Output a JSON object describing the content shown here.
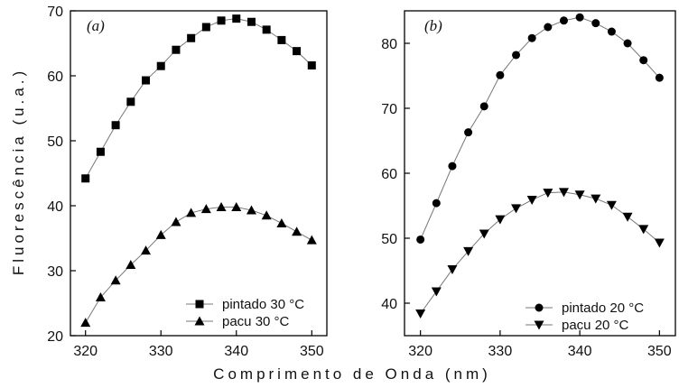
{
  "figure": {
    "xlabel": "Comprimento de Onda (nm)",
    "ylabel": "Fluorescência (u.a.)"
  },
  "chart_data": [
    {
      "type": "line",
      "panel_label": "(a)",
      "x": [
        320,
        322,
        324,
        326,
        328,
        330,
        332,
        334,
        336,
        338,
        340,
        342,
        344,
        346,
        348,
        350
      ],
      "xlim": [
        318,
        352
      ],
      "ylim": [
        20,
        70
      ],
      "xticks": [
        320,
        330,
        340,
        350
      ],
      "yticks": [
        20,
        30,
        40,
        50,
        60,
        70
      ],
      "legend_position": "bottom-right",
      "series": [
        {
          "name": "pintado 30 °C",
          "marker": "square",
          "values": [
            44.2,
            48.3,
            52.4,
            56.0,
            59.3,
            61.5,
            64.0,
            65.8,
            67.5,
            68.5,
            68.8,
            68.3,
            67.1,
            65.5,
            63.8,
            61.6
          ]
        },
        {
          "name": "pacu 30 °C",
          "marker": "triangle-up",
          "values": [
            22.0,
            25.9,
            28.5,
            30.9,
            33.1,
            35.5,
            37.5,
            38.9,
            39.5,
            39.8,
            39.8,
            39.3,
            38.5,
            37.3,
            36.0,
            34.7
          ]
        }
      ]
    },
    {
      "type": "line",
      "panel_label": "(b)",
      "x": [
        320,
        322,
        324,
        326,
        328,
        330,
        332,
        334,
        336,
        338,
        340,
        342,
        344,
        346,
        348,
        350
      ],
      "xlim": [
        318,
        352
      ],
      "ylim": [
        35,
        85
      ],
      "xticks": [
        320,
        330,
        340,
        350
      ],
      "yticks": [
        40,
        50,
        60,
        70,
        80
      ],
      "legend_position": "bottom-right",
      "series": [
        {
          "name": "pintado 20 °C",
          "marker": "circle",
          "values": [
            49.8,
            55.4,
            61.1,
            66.3,
            70.3,
            75.1,
            78.2,
            80.8,
            82.5,
            83.5,
            84.0,
            83.1,
            81.8,
            80.0,
            77.4,
            74.7
          ]
        },
        {
          "name": "pacu 20 °C",
          "marker": "triangle-down",
          "values": [
            38.4,
            41.8,
            45.2,
            48.0,
            50.7,
            52.9,
            54.6,
            55.9,
            57.0,
            57.1,
            56.7,
            56.1,
            55.1,
            53.3,
            51.4,
            49.3
          ]
        }
      ]
    }
  ]
}
